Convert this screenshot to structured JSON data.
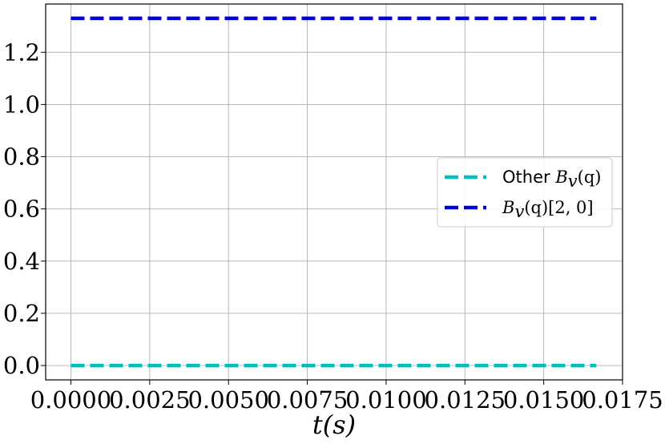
{
  "chart_data": {
    "type": "line",
    "title": "",
    "xlabel": "t(s)",
    "ylabel": "",
    "xlim": [
      -0.0008,
      0.0175
    ],
    "ylim": [
      -0.055,
      1.385
    ],
    "x_ticks": [
      0.0,
      0.0025,
      0.005,
      0.0075,
      0.01,
      0.0125,
      0.015,
      0.0175
    ],
    "x_tick_labels": [
      "0.0000",
      "0.0025",
      "0.0050",
      "0.0075",
      "0.0100",
      "0.0125",
      "0.0150",
      "0.0175"
    ],
    "y_ticks": [
      0.0,
      0.2,
      0.4,
      0.6,
      0.8,
      1.0,
      1.2
    ],
    "y_tick_labels": [
      "0.0",
      "0.2",
      "0.4",
      "0.6",
      "0.8",
      "1.0",
      "1.2"
    ],
    "grid": true,
    "legend_position": "center-right",
    "series": [
      {
        "name": "Other B_v(q)",
        "legend_prefix": "Other ",
        "legend_math": "B",
        "legend_sub": "v",
        "legend_tail": "(q)",
        "color": "#00bfbf",
        "style": "dashed",
        "x": [
          0.0,
          0.01667
        ],
        "y": [
          0.0,
          0.0
        ]
      },
      {
        "name": "B_v(q)[2, 0]",
        "legend_prefix": "",
        "legend_math": "B",
        "legend_sub": "v",
        "legend_tail": "(q)[2, 0]",
        "color": "#0000dd",
        "style": "dashed",
        "x": [
          0.0,
          0.01667
        ],
        "y": [
          1.33,
          1.33
        ]
      }
    ]
  }
}
